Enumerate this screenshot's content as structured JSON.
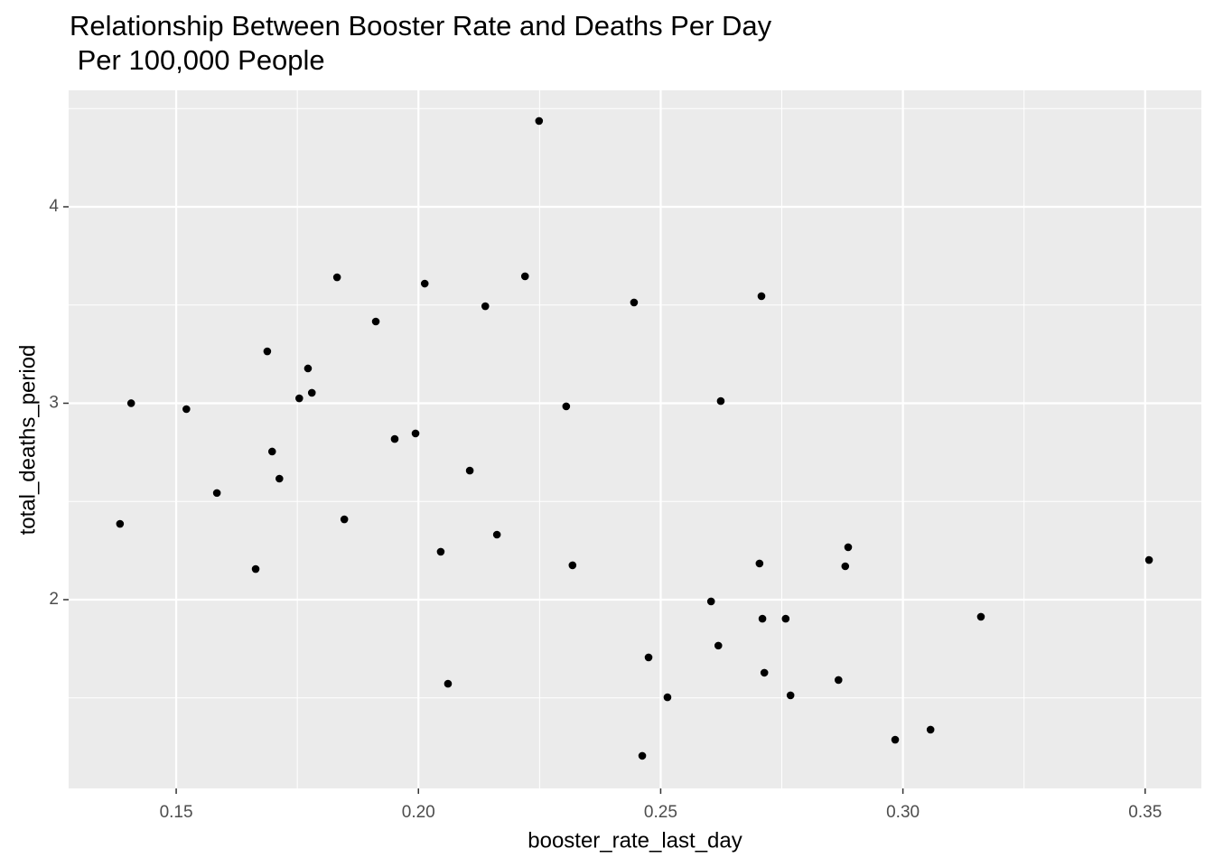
{
  "chart_data": {
    "type": "scatter",
    "title": "Relationship Between Booster Rate and Deaths Per Day\n Per 100,000 People",
    "x_label": "booster_rate_last_day",
    "y_label": "total_deaths_period",
    "color": "#000000",
    "grid": true,
    "xlim": [
      0.1278,
      0.3616
    ],
    "ylim": [
      1.039,
      4.593
    ],
    "xticks": [
      0.15,
      {
        "value": 0.2,
        "label": "0.20"
      },
      0.25,
      {
        "value": 0.3,
        "label": "0.30"
      },
      0.35
    ],
    "yticks": [
      2,
      3,
      4
    ],
    "x": [
      0.1384,
      0.1407,
      0.1521,
      0.1584,
      0.1664,
      0.1688,
      0.1698,
      0.1713,
      0.1754,
      0.1772,
      0.178,
      0.1832,
      0.1847,
      0.1912,
      0.1951,
      0.1994,
      0.2013,
      0.2046,
      0.2061,
      0.2106,
      0.2138,
      0.2162,
      0.222,
      0.2249,
      0.2305,
      0.2318,
      0.2445,
      0.2462,
      0.2475,
      0.2514,
      0.2604,
      0.2619,
      0.2624,
      0.2704,
      0.2708,
      0.271,
      0.2714,
      0.2758,
      0.2768,
      0.2867,
      0.2881,
      0.2887,
      0.2984,
      0.3057,
      0.3161,
      0.3508
    ],
    "values": [
      2.386,
      3.0,
      2.97,
      2.543,
      2.156,
      3.264,
      2.754,
      2.616,
      3.025,
      3.177,
      3.053,
      3.641,
      2.409,
      3.416,
      2.818,
      2.846,
      3.609,
      2.244,
      1.572,
      2.657,
      3.494,
      2.331,
      3.646,
      4.437,
      2.984,
      2.175,
      3.513,
      1.205,
      1.706,
      1.503,
      1.991,
      1.766,
      3.011,
      2.184,
      3.545,
      1.903,
      1.628,
      1.903,
      1.513,
      1.591,
      2.17,
      2.267,
      1.287,
      1.338,
      1.913,
      2.202
    ]
  }
}
